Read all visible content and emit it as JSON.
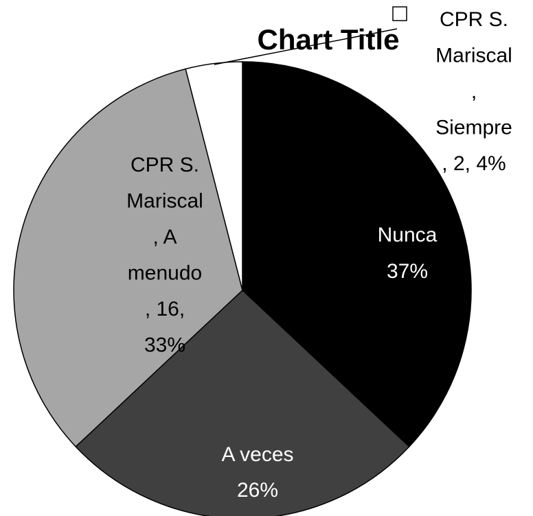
{
  "chart_data": {
    "type": "pie",
    "title": "Chart Title",
    "values": [
      37,
      26,
      33,
      4
    ],
    "value_labels": [
      [
        "Nunca",
        "37%"
      ],
      [
        "A veces",
        "26%"
      ],
      [
        "CPR S.",
        "Mariscal",
        ", A",
        "menudo",
        ", 16,",
        "33%"
      ],
      [
        "CPR S.",
        "Mariscal",
        ",",
        "Siempre",
        ", 2, 4%"
      ]
    ],
    "colors": [
      "#000000",
      "#404040",
      "#a6a6a6",
      "#ffffff"
    ]
  }
}
